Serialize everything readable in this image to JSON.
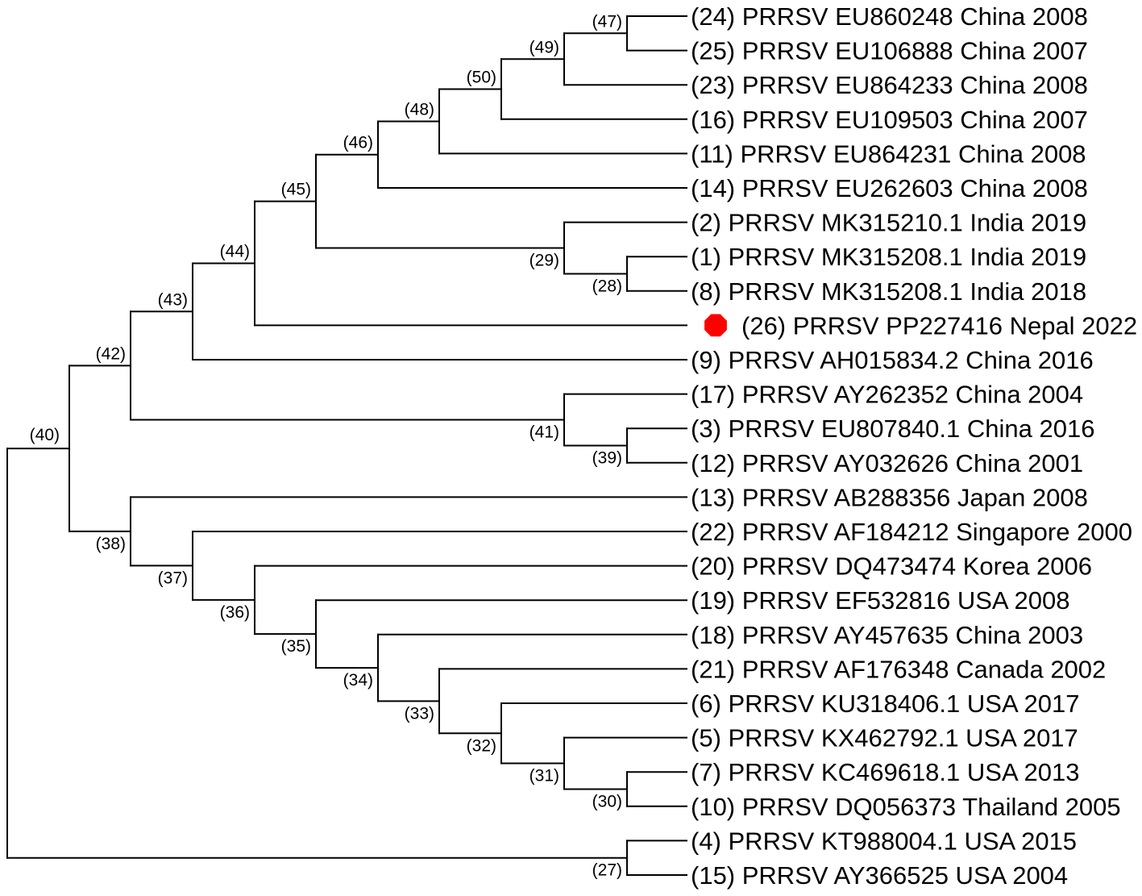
{
  "tree": {
    "highlight_color": "#ff0000",
    "highlight_marker": "red-octagon",
    "leaves": [
      {
        "key": "24",
        "label": "(24) PRRSV EU860248 China 2008"
      },
      {
        "key": "25",
        "label": "(25) PRRSV EU106888 China 2007"
      },
      {
        "key": "23",
        "label": "(23) PRRSV EU864233 China 2008"
      },
      {
        "key": "16",
        "label": "(16) PRRSV EU109503 China 2007"
      },
      {
        "key": "11",
        "label": "(11) PRRSV EU864231 China 2008"
      },
      {
        "key": "14",
        "label": "(14) PRRSV EU262603 China 2008"
      },
      {
        "key": "2",
        "label": "(2) PRRSV MK315210.1 India 2019"
      },
      {
        "key": "1",
        "label": "(1) PRRSV MK315208.1 India 2019"
      },
      {
        "key": "8",
        "label": "(8) PRRSV MK315208.1 India 2018"
      },
      {
        "key": "26",
        "label": "(26) PRRSV PP227416 Nepal 2022",
        "highlighted": true
      },
      {
        "key": "9",
        "label": "(9) PRRSV AH015834.2 China 2016"
      },
      {
        "key": "17",
        "label": "(17) PRRSV AY262352 China 2004"
      },
      {
        "key": "3",
        "label": "(3) PRRSV EU807840.1 China 2016"
      },
      {
        "key": "12",
        "label": "(12) PRRSV AY032626 China 2001"
      },
      {
        "key": "13",
        "label": "(13) PRRSV AB288356 Japan 2008"
      },
      {
        "key": "22",
        "label": "(22) PRRSV AF184212 Singapore 2000"
      },
      {
        "key": "20",
        "label": "(20) PRRSV DQ473474 Korea 2006"
      },
      {
        "key": "19",
        "label": "(19) PRRSV EF532816 USA 2008"
      },
      {
        "key": "18",
        "label": "(18) PRRSV AY457635 China 2003"
      },
      {
        "key": "21",
        "label": "(21) PRRSV AF176348 Canada 2002"
      },
      {
        "key": "6",
        "label": "(6) PRRSV KU318406.1 USA 2017"
      },
      {
        "key": "5",
        "label": "(5) PRRSV KX462792.1 USA 2017"
      },
      {
        "key": "7",
        "label": "(7) PRRSV KC469618.1 USA 2013"
      },
      {
        "key": "10",
        "label": "(10) PRRSV DQ056373 Thailand 2005"
      },
      {
        "key": "4",
        "label": "(4) PRRSV KT988004.1 USA 2015"
      },
      {
        "key": "15",
        "label": "(15) PRRSV AY366525 USA 2004"
      }
    ],
    "nodes": [
      {
        "key": "n47",
        "label": "(47)",
        "children": [
          "24",
          "25"
        ]
      },
      {
        "key": "n49",
        "label": "(49)",
        "children": [
          "n47",
          "23"
        ]
      },
      {
        "key": "n50",
        "label": "(50)",
        "children": [
          "n49",
          "16"
        ]
      },
      {
        "key": "n48",
        "label": "(48)",
        "children": [
          "n50",
          "11"
        ]
      },
      {
        "key": "n46",
        "label": "(46)",
        "children": [
          "n48",
          "14"
        ]
      },
      {
        "key": "n28",
        "label": "(28)",
        "children": [
          "1",
          "8"
        ]
      },
      {
        "key": "n29",
        "label": "(29)",
        "children": [
          "2",
          "n28"
        ]
      },
      {
        "key": "n45",
        "label": "(45)",
        "children": [
          "n46",
          "n29"
        ]
      },
      {
        "key": "n44",
        "label": "(44)",
        "children": [
          "n45",
          "26"
        ]
      },
      {
        "key": "n43",
        "label": "(43)",
        "children": [
          "n44",
          "9"
        ]
      },
      {
        "key": "n39",
        "label": "(39)",
        "children": [
          "3",
          "12"
        ]
      },
      {
        "key": "n41",
        "label": "(41)",
        "children": [
          "17",
          "n39"
        ]
      },
      {
        "key": "n42",
        "label": "(42)",
        "children": [
          "n43",
          "n41"
        ]
      },
      {
        "key": "n30",
        "label": "(30)",
        "children": [
          "7",
          "10"
        ]
      },
      {
        "key": "n31",
        "label": "(31)",
        "children": [
          "5",
          "n30"
        ]
      },
      {
        "key": "n32",
        "label": "(32)",
        "children": [
          "6",
          "n31"
        ]
      },
      {
        "key": "n33",
        "label": "(33)",
        "children": [
          "21",
          "n32"
        ]
      },
      {
        "key": "n34",
        "label": "(34)",
        "children": [
          "18",
          "n33"
        ]
      },
      {
        "key": "n35",
        "label": "(35)",
        "children": [
          "19",
          "n34"
        ]
      },
      {
        "key": "n36",
        "label": "(36)",
        "children": [
          "20",
          "n35"
        ]
      },
      {
        "key": "n37",
        "label": "(37)",
        "children": [
          "22",
          "n36"
        ]
      },
      {
        "key": "n38",
        "label": "(38)",
        "children": [
          "13",
          "n37"
        ]
      },
      {
        "key": "n27",
        "label": "(27)",
        "children": [
          "4",
          "15"
        ]
      },
      {
        "key": "n40",
        "label": "(40)",
        "children": [
          "n42",
          "n38",
          "n27"
        ]
      }
    ]
  }
}
